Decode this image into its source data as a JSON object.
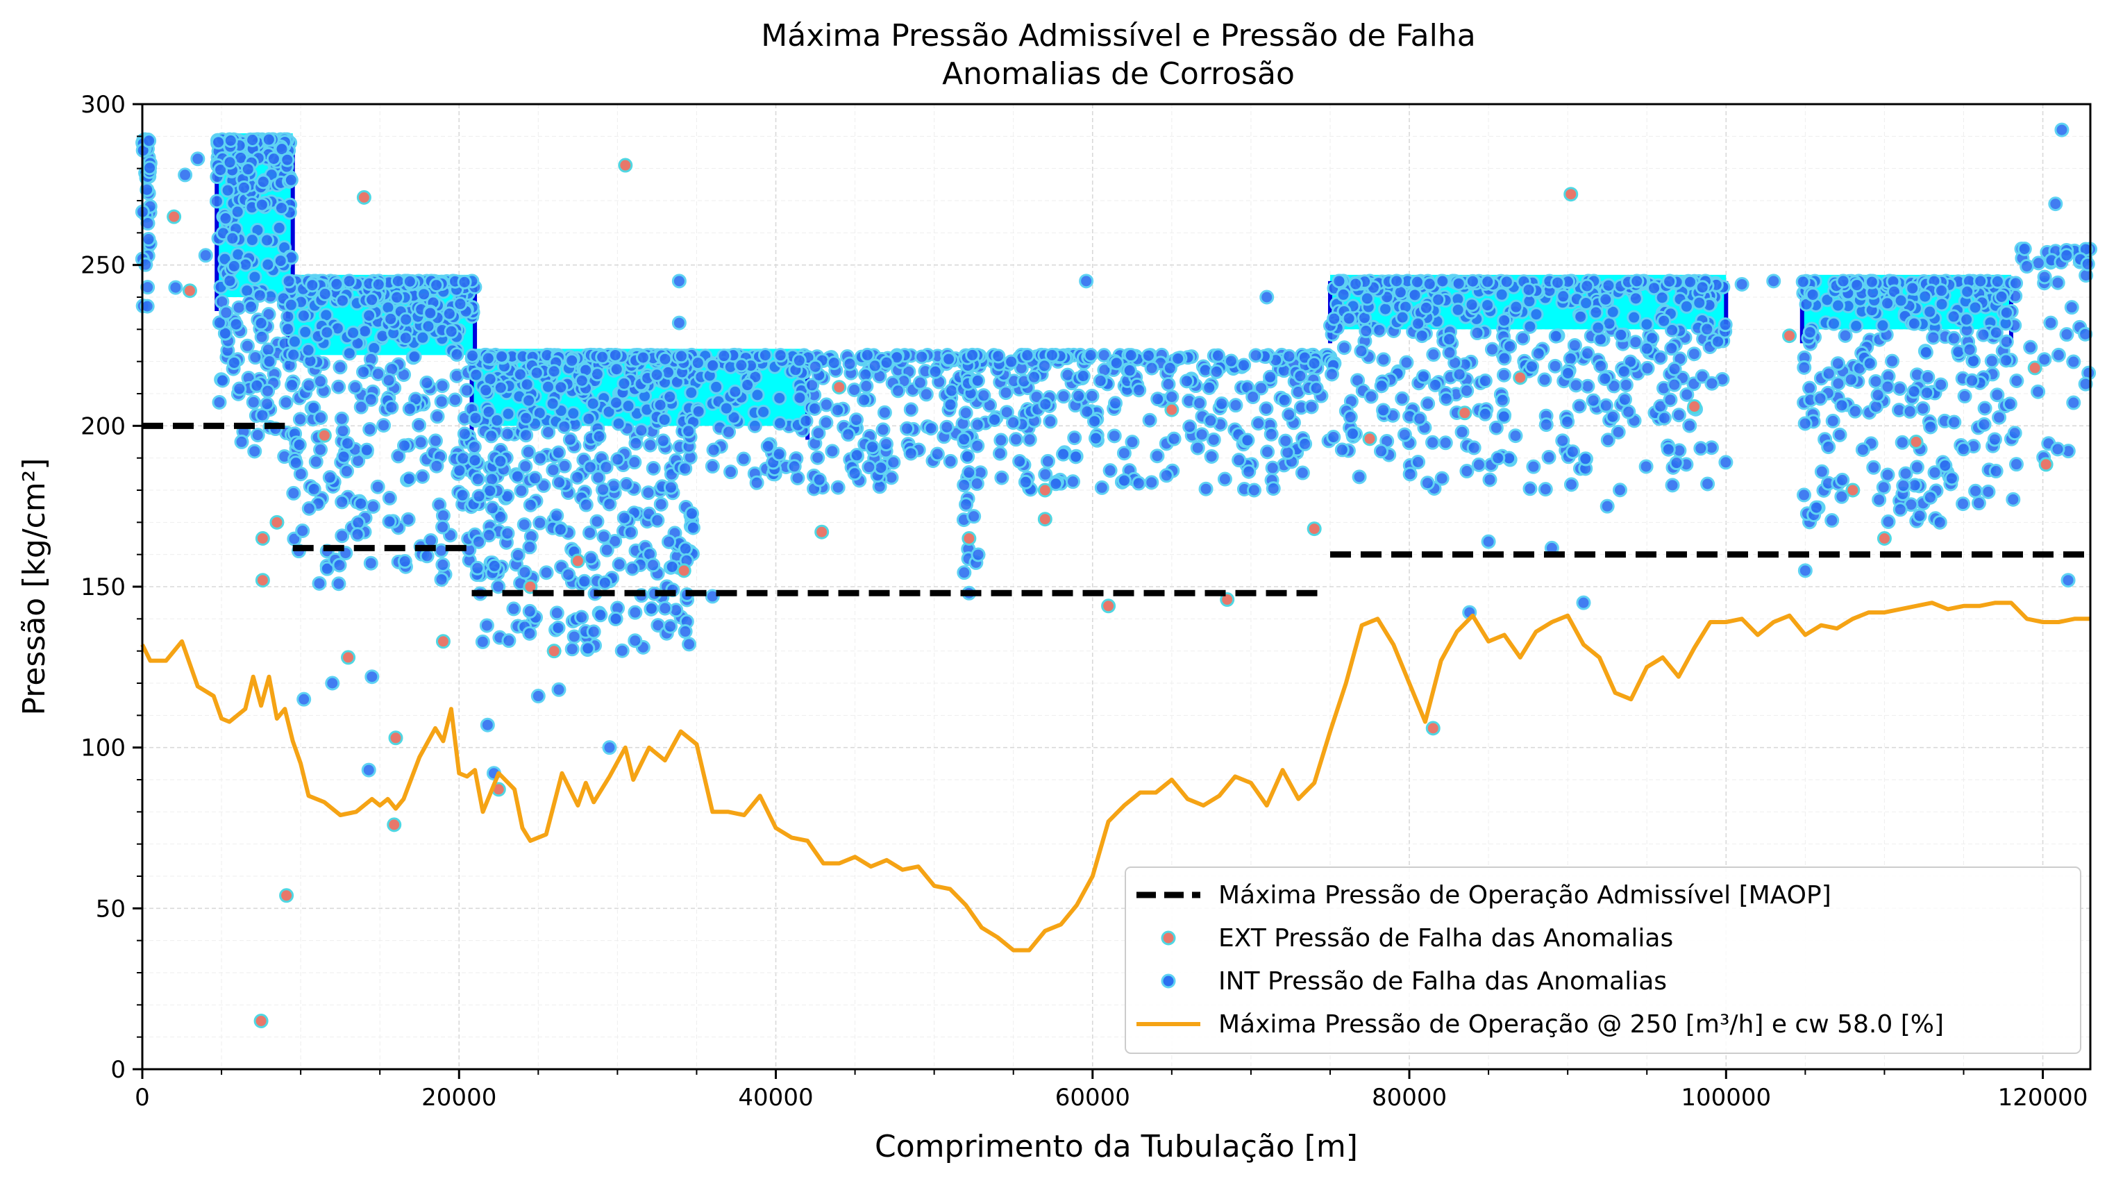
{
  "chart_data": {
    "type": "scatter",
    "title_line1": "Máxima Pressão Admissível e Pressão de Falha",
    "title_line2": "Anomalias de Corrosão",
    "xlabel": "Comprimento da Tubulação [m]",
    "ylabel": "Pressão [kg/cm²]",
    "xlim": [
      0,
      123000
    ],
    "ylim": [
      0,
      300
    ],
    "x_ticks": [
      0,
      20000,
      40000,
      60000,
      80000,
      100000,
      120000
    ],
    "x_tick_labels": [
      "0",
      "20000",
      "40000",
      "60000",
      "80000",
      "100000",
      "120000"
    ],
    "y_ticks": [
      0,
      50,
      100,
      150,
      200,
      250,
      300
    ],
    "y_tick_labels": [
      "0",
      "50",
      "100",
      "150",
      "200",
      "250",
      "300"
    ],
    "grid": true,
    "legend_position": "lower-right",
    "colors": {
      "maop": "#000000",
      "ext_face": "#e8776a",
      "ext_edge": "#4fd7e3",
      "int_face": "#2c6ff0",
      "int_edge": "#5fd3f3",
      "int_dense": "#00ffff",
      "int_dark": "#0000dd",
      "operation": "#f5a314"
    },
    "legend": [
      {
        "label": "Máxima Pressão de Operação Admissível [MAOP]",
        "kind": "dashed"
      },
      {
        "label": "EXT Pressão de Falha das Anomalias",
        "kind": "ext-dot"
      },
      {
        "label": "INT Pressão de Falha das Anomalias",
        "kind": "int-dot"
      },
      {
        "label": "Máxima Pressão de Operação @ 250 [m³/h] e cw 58.0 [%]",
        "kind": "line"
      }
    ],
    "maop_segments": [
      {
        "x": [
          0,
          9000
        ],
        "y": 200
      },
      {
        "x": [
          9500,
          20800
        ],
        "y": 162
      },
      {
        "x": [
          20800,
          74500
        ],
        "y": 148
      },
      {
        "x": [
          75000,
          123000
        ],
        "y": 160
      }
    ],
    "dense_bands": [
      {
        "x": [
          4700,
          9500
        ],
        "y_top": 289,
        "y_bottom": 240
      },
      {
        "x": [
          9200,
          21000
        ],
        "y_top": 245,
        "y_bottom": 222
      },
      {
        "x": [
          20800,
          42000
        ],
        "y_top": 222,
        "y_bottom": 200
      },
      {
        "x": [
          75000,
          100000
        ],
        "y_top": 245,
        "y_bottom": 230
      },
      {
        "x": [
          104800,
          118000
        ],
        "y_top": 245,
        "y_bottom": 230
      }
    ],
    "int_clusters": [
      {
        "x": [
          0,
          500
        ],
        "y": [
          235,
          289
        ],
        "n": 40
      },
      {
        "x": [
          4700,
          9500
        ],
        "y": [
          190,
          289
        ],
        "n": 260
      },
      {
        "x": [
          9200,
          21000
        ],
        "y": [
          150,
          245
        ],
        "n": 380
      },
      {
        "x": [
          20800,
          35000
        ],
        "y": [
          130,
          222
        ],
        "n": 500
      },
      {
        "x": [
          35000,
          75000
        ],
        "y": [
          180,
          222
        ],
        "n": 520
      },
      {
        "x": [
          51800,
          52800
        ],
        "y": [
          150,
          222
        ],
        "n": 40
      },
      {
        "x": [
          75000,
          100000
        ],
        "y": [
          180,
          245
        ],
        "n": 480
      },
      {
        "x": [
          104800,
          118500
        ],
        "y": [
          170,
          245
        ],
        "n": 300
      },
      {
        "x": [
          118500,
          123000
        ],
        "y": [
          190,
          255
        ],
        "n": 40
      }
    ],
    "ext_points": [
      [
        7500,
        15
      ],
      [
        9100,
        54
      ],
      [
        7600,
        152
      ],
      [
        8500,
        170
      ],
      [
        7600,
        165
      ],
      [
        14000,
        271
      ],
      [
        13000,
        128
      ],
      [
        15900,
        76
      ],
      [
        16000,
        103
      ],
      [
        19000,
        133
      ],
      [
        22500,
        87
      ],
      [
        26000,
        130
      ],
      [
        30500,
        281
      ],
      [
        34200,
        155
      ],
      [
        42900,
        167
      ],
      [
        52200,
        165
      ],
      [
        57000,
        180
      ],
      [
        57000,
        171
      ],
      [
        61000,
        144
      ],
      [
        68500,
        146
      ],
      [
        74000,
        168
      ],
      [
        81500,
        106
      ],
      [
        90200,
        272
      ],
      [
        87000,
        215
      ],
      [
        104000,
        228
      ],
      [
        108000,
        180
      ],
      [
        112000,
        195
      ],
      [
        120200,
        188
      ],
      [
        119500,
        218
      ],
      [
        3000,
        242
      ],
      [
        2000,
        265
      ],
      [
        11500,
        197
      ],
      [
        24500,
        150
      ],
      [
        27500,
        158
      ],
      [
        44000,
        212
      ],
      [
        65000,
        205
      ],
      [
        77500,
        196
      ],
      [
        83500,
        204
      ],
      [
        98000,
        206
      ],
      [
        110000,
        165
      ]
    ],
    "int_scatter": [
      [
        2100,
        243
      ],
      [
        2700,
        278
      ],
      [
        3500,
        283
      ],
      [
        4000,
        253
      ],
      [
        10200,
        115
      ],
      [
        12000,
        120
      ],
      [
        14300,
        93
      ],
      [
        14500,
        122
      ],
      [
        21800,
        107
      ],
      [
        22200,
        92
      ],
      [
        25000,
        116
      ],
      [
        26300,
        118
      ],
      [
        28500,
        136
      ],
      [
        29500,
        100
      ],
      [
        29900,
        140
      ],
      [
        33900,
        245
      ],
      [
        33900,
        232
      ],
      [
        36000,
        147
      ],
      [
        52200,
        148
      ],
      [
        59600,
        245
      ],
      [
        62000,
        183
      ],
      [
        65000,
        209
      ],
      [
        70200,
        180
      ],
      [
        71000,
        240
      ],
      [
        83800,
        142
      ],
      [
        85000,
        164
      ],
      [
        85600,
        190
      ],
      [
        89000,
        162
      ],
      [
        91000,
        145
      ],
      [
        92500,
        175
      ],
      [
        98400,
        193
      ],
      [
        101000,
        244
      ],
      [
        103000,
        245
      ],
      [
        105000,
        155
      ],
      [
        107300,
        178
      ],
      [
        111000,
        174
      ],
      [
        113500,
        170
      ],
      [
        121600,
        152
      ],
      [
        121200,
        292
      ],
      [
        120800,
        269
      ],
      [
        121500,
        253
      ],
      [
        120500,
        232
      ],
      [
        121000,
        222
      ],
      [
        122700,
        213
      ],
      [
        80800,
        228
      ],
      [
        86000,
        221
      ],
      [
        95000,
        224
      ],
      [
        60500,
        214
      ]
    ],
    "operation_line": {
      "x": [
        0,
        500,
        1500,
        2500,
        3500,
        4500,
        5000,
        5500,
        6500,
        7000,
        7500,
        8000,
        8500,
        9000,
        9500,
        10000,
        10500,
        11500,
        12500,
        13500,
        14500,
        15000,
        15500,
        16000,
        16500,
        17500,
        18500,
        19000,
        19500,
        20000,
        20500,
        21000,
        21500,
        22500,
        23500,
        24000,
        24500,
        25500,
        26500,
        27500,
        28000,
        28500,
        29500,
        30500,
        31000,
        32000,
        33000,
        34000,
        35000,
        36000,
        37000,
        38000,
        39000,
        40000,
        41000,
        42000,
        43000,
        44000,
        45000,
        46000,
        47000,
        48000,
        49000,
        50000,
        51000,
        52000,
        53000,
        54000,
        55000,
        56000,
        57000,
        58000,
        59000,
        60000,
        61000,
        62000,
        63000,
        64000,
        65000,
        66000,
        67000,
        68000,
        69000,
        70000,
        71000,
        72000,
        73000,
        74000,
        75000,
        76000,
        77000,
        78000,
        79000,
        80000,
        81000,
        82000,
        83000,
        84000,
        85000,
        86000,
        87000,
        88000,
        89000,
        90000,
        91000,
        92000,
        93000,
        94000,
        95000,
        96000,
        97000,
        98000,
        99000,
        100000,
        101000,
        102000,
        103000,
        104000,
        105000,
        106000,
        107000,
        108000,
        109000,
        110000,
        111000,
        112000,
        113000,
        114000,
        115000,
        116000,
        117000,
        118000,
        119000,
        120000,
        121000,
        122000,
        123000
      ],
      "y": [
        132,
        127,
        127,
        133,
        119,
        116,
        109,
        108,
        112,
        122,
        113,
        122,
        109,
        112,
        102,
        95,
        85,
        83,
        79,
        80,
        84,
        82,
        84,
        81,
        84,
        97,
        106,
        102,
        112,
        92,
        91,
        93,
        80,
        92,
        87,
        75,
        71,
        73,
        92,
        82,
        89,
        83,
        91,
        100,
        90,
        100,
        96,
        105,
        101,
        80,
        80,
        79,
        85,
        75,
        72,
        71,
        64,
        64,
        66,
        63,
        65,
        62,
        63,
        57,
        56,
        51,
        44,
        41,
        37,
        37,
        43,
        45,
        51,
        60,
        77,
        82,
        86,
        86,
        90,
        84,
        82,
        85,
        91,
        89,
        82,
        93,
        84,
        89,
        105,
        120,
        138,
        140,
        132,
        120,
        108,
        127,
        136,
        141,
        133,
        135,
        128,
        136,
        139,
        141,
        132,
        128,
        117,
        115,
        125,
        128,
        122,
        131,
        139,
        139,
        140,
        135,
        139,
        141,
        135,
        138,
        137,
        140,
        142,
        142,
        143,
        144,
        145,
        143,
        144,
        144,
        145,
        145,
        140,
        139,
        139,
        140,
        140
      ]
    }
  }
}
